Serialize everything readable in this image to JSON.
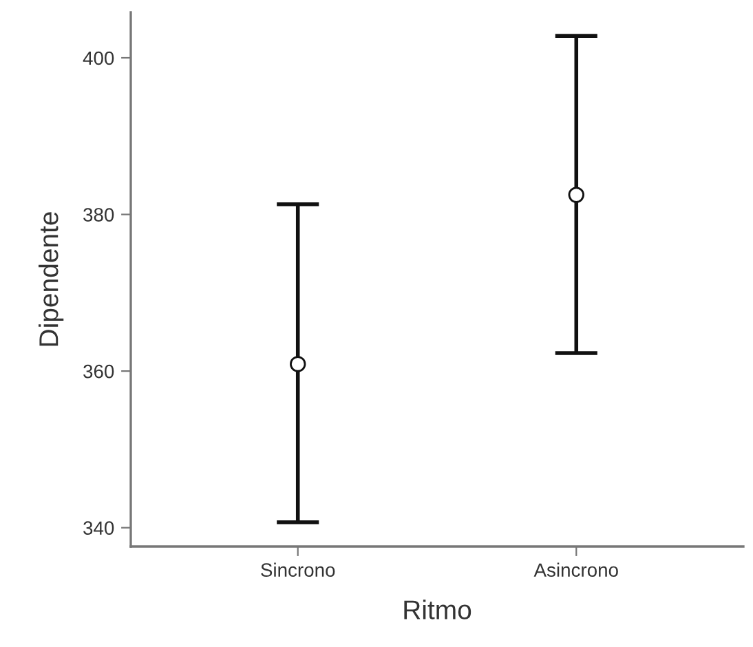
{
  "chart_data": {
    "type": "scatter",
    "xlabel": "Ritmo",
    "ylabel": "Dipendente",
    "categories": [
      "Sincrono",
      "Asincrono"
    ],
    "values": [
      360.9,
      382.5
    ],
    "errors": [
      [
        340.7,
        381.3
      ],
      [
        362.3,
        402.8
      ]
    ],
    "color": "#ffffff",
    "marker": "circle",
    "ylim": [
      337.6,
      405.8
    ],
    "yticks": [
      340,
      360,
      380,
      400
    ],
    "grid": false,
    "legend": false
  }
}
